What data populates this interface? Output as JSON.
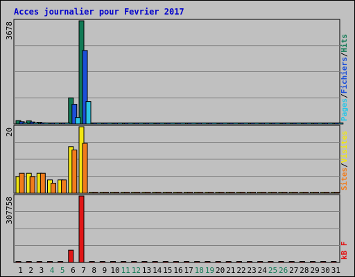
{
  "chart_data": {
    "type": "bar",
    "title": "Acces journalier pour Fevrier 2017",
    "days": [
      "1",
      "2",
      "3",
      "4",
      "5",
      "6",
      "7",
      "8",
      "9",
      "10",
      "11",
      "12",
      "13",
      "14",
      "15",
      "16",
      "17",
      "18",
      "19",
      "20",
      "21",
      "22",
      "23",
      "24",
      "25",
      "26",
      "27",
      "28",
      "29",
      "30",
      "31"
    ],
    "weekend_days": [
      "4",
      "5",
      "11",
      "12",
      "18",
      "19",
      "25",
      "26"
    ],
    "panels": [
      {
        "id": "hits",
        "max_label": "3678",
        "max_value": 3678,
        "legend": [
          {
            "name": "Pages",
            "color": "#29c6e6"
          },
          {
            "sep": "/"
          },
          {
            "name": "Fichiers",
            "color": "#1c4fd8"
          },
          {
            "sep": "/"
          },
          {
            "name": "Hits",
            "color": "#117a55"
          }
        ],
        "series": [
          {
            "name": "Hits",
            "color": "#117a55",
            "values": [
              120,
              110,
              60,
              30,
              30,
              930,
              3678,
              0,
              0,
              0,
              0,
              0,
              0,
              0,
              0,
              0,
              0,
              0,
              0,
              0,
              0,
              0,
              0,
              0,
              0,
              0,
              0,
              0,
              0,
              0,
              0
            ]
          },
          {
            "name": "Fichiers",
            "color": "#1c4fd8",
            "values": [
              80,
              70,
              40,
              20,
              20,
              700,
              2620,
              0,
              0,
              0,
              0,
              0,
              0,
              0,
              0,
              0,
              0,
              0,
              0,
              0,
              0,
              0,
              0,
              0,
              0,
              0,
              0,
              0,
              0,
              0,
              0
            ]
          },
          {
            "name": "Pages",
            "color": "#29c6e6",
            "values": [
              10,
              10,
              5,
              5,
              5,
              230,
              800,
              0,
              0,
              0,
              0,
              0,
              0,
              0,
              0,
              0,
              0,
              0,
              0,
              0,
              0,
              0,
              0,
              0,
              0,
              0,
              0,
              0,
              0,
              0,
              0
            ]
          }
        ]
      },
      {
        "id": "visits",
        "max_label": "20",
        "max_value": 20,
        "legend": [
          {
            "name": "Sites",
            "color": "#f17c1c"
          },
          {
            "sep": "/"
          },
          {
            "name": "Visites",
            "color": "#f2e612"
          }
        ],
        "series": [
          {
            "name": "Visites",
            "color": "#f2e612",
            "values": [
              5,
              6,
              6,
              4,
              4,
              14,
              20,
              0,
              0,
              0,
              0,
              0,
              0,
              0,
              0,
              0,
              0,
              0,
              0,
              0,
              0,
              0,
              0,
              0,
              0,
              0,
              0,
              0,
              0,
              0,
              0
            ]
          },
          {
            "name": "Sites",
            "color": "#f17c1c",
            "values": [
              6,
              5,
              6,
              3,
              4,
              13,
              15,
              0,
              0,
              0,
              0,
              0,
              0,
              0,
              0,
              0,
              0,
              0,
              0,
              0,
              0,
              0,
              0,
              0,
              0,
              0,
              0,
              0,
              0,
              0,
              0
            ]
          }
        ]
      },
      {
        "id": "kbytes",
        "max_label": "307758",
        "max_value": 307758,
        "legend": [
          {
            "name": "kB F",
            "color": "#e01717"
          }
        ],
        "series": [
          {
            "name": "kB F",
            "color": "#e01717",
            "values": [
              1500,
              1500,
              1000,
              700,
              700,
              57000,
              307758,
              0,
              0,
              0,
              0,
              0,
              0,
              0,
              0,
              0,
              0,
              0,
              0,
              0,
              0,
              0,
              0,
              0,
              0,
              0,
              0,
              0,
              0,
              0,
              0
            ]
          }
        ]
      }
    ]
  },
  "colors": {
    "background": "#c0c0c0",
    "plot_background": "#c0c0c0",
    "grid": "#808080",
    "title": "#0000cc",
    "axis_text": "#000000",
    "weekend_text": "#117a55"
  }
}
